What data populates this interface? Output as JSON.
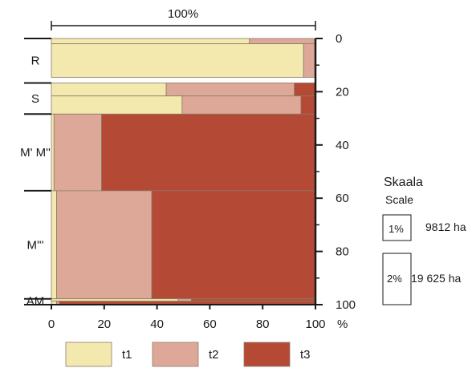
{
  "chart_data": {
    "type": "bar",
    "orientation": "horizontal",
    "stacked": true,
    "title": "",
    "top_label": "100%",
    "x_unit": "%",
    "xlim": [
      0,
      100
    ],
    "ylim": [
      0,
      100
    ],
    "x_ticks": [
      0,
      20,
      40,
      60,
      80,
      100
    ],
    "y_ticks": [
      0,
      20,
      40,
      60,
      80,
      100
    ],
    "series_names": [
      "t1",
      "t2",
      "t3"
    ],
    "colors": {
      "t1": "#f3e9ae",
      "t2": "#dea898",
      "t3": "#b44a35"
    },
    "groups": [
      {
        "label": "R",
        "y_start": 0,
        "y_end": 16.7
      },
      {
        "label": "S",
        "y_start": 16.7,
        "y_end": 28.4
      },
      {
        "label": "M' M''",
        "y_start": 28.4,
        "y_end": 57.2
      },
      {
        "label": "M'''",
        "y_start": 57.2,
        "y_end": 97.8
      },
      {
        "label": "AM",
        "y_start": 97.8,
        "y_end": 100
      }
    ],
    "bars": [
      {
        "group": "R",
        "y_start": 0,
        "y_end": 2.0,
        "t1": 75,
        "t2": 25,
        "t3": 0
      },
      {
        "group": "R",
        "y_start": 2.0,
        "y_end": 14.6,
        "t1": 95.5,
        "t2": 4.5,
        "t3": 0
      },
      {
        "group": "S",
        "y_start": 16.7,
        "y_end": 21.6,
        "t1": 43.5,
        "t2": 48.5,
        "t3": 8
      },
      {
        "group": "S",
        "y_start": 21.6,
        "y_end": 28.4,
        "t1": 49.5,
        "t2": 45,
        "t3": 5.5
      },
      {
        "group": "M' M''",
        "y_start": 28.4,
        "y_end": 57.2,
        "t1": 1,
        "t2": 18,
        "t3": 81
      },
      {
        "group": "M'''",
        "y_start": 57.2,
        "y_end": 97.8,
        "t1": 2,
        "t2": 36,
        "t3": 62
      },
      {
        "group": "AM",
        "y_start": 97.8,
        "y_end": 98.7,
        "t1": 48,
        "t2": 5,
        "t3": 47
      },
      {
        "group": "AM",
        "y_start": 98.7,
        "y_end": 100,
        "t1": 2,
        "t2": 1,
        "t3": 97
      }
    ],
    "legend": [
      {
        "key": "t1",
        "label": "t1"
      },
      {
        "key": "t2",
        "label": "t2"
      },
      {
        "key": "t3",
        "label": "t3"
      }
    ],
    "scale": {
      "title": "Skaala",
      "subtitle": "Scale",
      "items": [
        {
          "label": "1%",
          "value": "9812 ha"
        },
        {
          "label": "2%",
          "value": "19 625 ha"
        }
      ]
    }
  }
}
